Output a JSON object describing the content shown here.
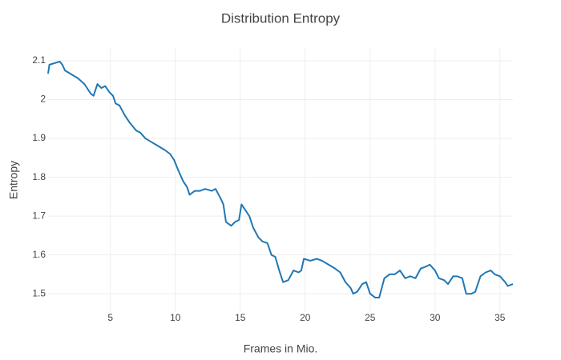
{
  "chart_data": {
    "type": "line",
    "title": "Distribution Entropy",
    "x_label": "Frames in Mio.",
    "y_label": "Entropy",
    "x": [
      0.2,
      0.3,
      0.8,
      1.1,
      1.3,
      1.5,
      2.0,
      2.5,
      3.0,
      3.5,
      3.7,
      4.0,
      4.3,
      4.6,
      4.9,
      5.2,
      5.4,
      5.7,
      6.1,
      6.5,
      7.0,
      7.3,
      7.7,
      8.2,
      8.7,
      9.2,
      9.6,
      9.9,
      10.2,
      10.6,
      10.9,
      11.1,
      11.5,
      11.9,
      12.3,
      12.8,
      13.1,
      13.5,
      13.7,
      13.9,
      14.3,
      14.6,
      14.9,
      15.1,
      15.4,
      15.7,
      16.0,
      16.4,
      16.7,
      17.1,
      17.4,
      17.7,
      18.0,
      18.3,
      18.7,
      19.1,
      19.5,
      19.7,
      19.9,
      20.4,
      20.9,
      21.3,
      21.8,
      22.3,
      22.7,
      23.1,
      23.5,
      23.7,
      24.0,
      24.4,
      24.7,
      25.0,
      25.4,
      25.7,
      26.1,
      26.5,
      26.9,
      27.3,
      27.7,
      28.1,
      28.5,
      28.9,
      29.3,
      29.6,
      30.0,
      30.3,
      30.7,
      31.0,
      31.4,
      31.7,
      32.1,
      32.4,
      32.8,
      33.1,
      33.5,
      33.9,
      34.3,
      34.6,
      35.0,
      35.4,
      35.6,
      36.0
    ],
    "series": [
      {
        "name": "Entropy",
        "color": "#1f77b4",
        "values": [
          2.067,
          2.09,
          2.095,
          2.098,
          2.09,
          2.075,
          2.065,
          2.055,
          2.04,
          2.015,
          2.01,
          2.04,
          2.03,
          2.035,
          2.02,
          2.01,
          1.99,
          1.985,
          1.96,
          1.94,
          1.92,
          1.915,
          1.9,
          1.89,
          1.88,
          1.87,
          1.86,
          1.845,
          1.82,
          1.79,
          1.775,
          1.755,
          1.765,
          1.765,
          1.77,
          1.765,
          1.77,
          1.745,
          1.73,
          1.685,
          1.675,
          1.685,
          1.69,
          1.73,
          1.715,
          1.7,
          1.67,
          1.645,
          1.635,
          1.63,
          1.6,
          1.595,
          1.56,
          1.53,
          1.535,
          1.56,
          1.555,
          1.56,
          1.59,
          1.585,
          1.59,
          1.585,
          1.575,
          1.565,
          1.555,
          1.53,
          1.515,
          1.5,
          1.505,
          1.525,
          1.53,
          1.5,
          1.49,
          1.49,
          1.54,
          1.55,
          1.55,
          1.56,
          1.54,
          1.545,
          1.54,
          1.565,
          1.57,
          1.575,
          1.56,
          1.54,
          1.535,
          1.525,
          1.545,
          1.545,
          1.54,
          1.5,
          1.5,
          1.505,
          1.545,
          1.555,
          1.56,
          1.55,
          1.545,
          1.53,
          1.52,
          1.525
        ]
      }
    ],
    "xlim": [
      0.2,
      36
    ],
    "ylim": [
      1.453,
      2.133
    ],
    "xticks": [
      5,
      10,
      15,
      20,
      25,
      30,
      35
    ],
    "yticks": [
      1.5,
      1.6,
      1.7,
      1.8,
      1.9,
      2,
      2.1
    ],
    "grid": true
  }
}
